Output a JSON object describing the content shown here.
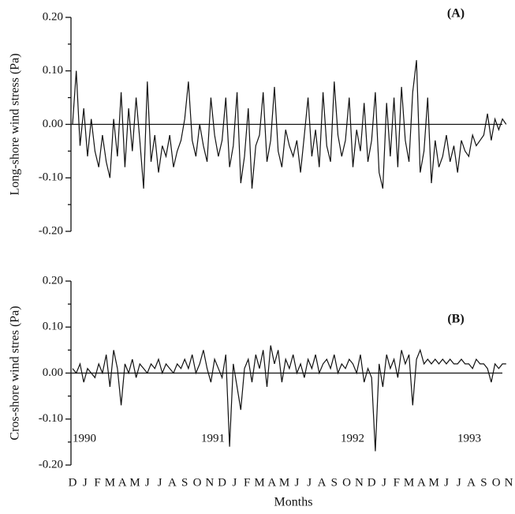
{
  "chart_data": [
    {
      "type": "line",
      "panel_label": "(A)",
      "ylabel": "Long-shore wind stress (Pa)",
      "color": "#111111",
      "ylim": [
        -0.2,
        0.2
      ],
      "yticks": [
        {
          "value": -0.2,
          "label": "-0.20"
        },
        {
          "value": -0.1,
          "label": "-0.10"
        },
        {
          "value": 0,
          "label": "0.00"
        },
        {
          "value": 0.1,
          "label": "0.10"
        },
        {
          "value": 0.2,
          "label": "0.20"
        }
      ],
      "xlim": [
        0,
        35
      ],
      "x": [
        0,
        0.3,
        0.6,
        0.9,
        1.2,
        1.5,
        1.8,
        2.1,
        2.4,
        2.7,
        3,
        3.3,
        3.6,
        3.9,
        4.2,
        4.5,
        4.8,
        5.1,
        5.4,
        5.7,
        6,
        6.3,
        6.6,
        6.9,
        7.2,
        7.5,
        7.8,
        8.1,
        8.4,
        8.7,
        9,
        9.3,
        9.6,
        9.9,
        10.2,
        10.5,
        10.8,
        11.1,
        11.4,
        11.7,
        12,
        12.3,
        12.6,
        12.9,
        13.2,
        13.5,
        13.8,
        14.1,
        14.4,
        14.7,
        15,
        15.3,
        15.6,
        15.9,
        16.2,
        16.5,
        16.8,
        17.1,
        17.4,
        17.7,
        18,
        18.3,
        18.6,
        18.9,
        19.2,
        19.5,
        19.8,
        20.1,
        20.4,
        20.7,
        21,
        21.3,
        21.6,
        21.9,
        22.2,
        22.5,
        22.8,
        23.1,
        23.4,
        23.7,
        24,
        24.3,
        24.6,
        24.9,
        25.2,
        25.5,
        25.8,
        26.1,
        26.4,
        26.7,
        27,
        27.3,
        27.6,
        27.9,
        28.2,
        28.5,
        28.8,
        29.1,
        29.4,
        29.7,
        30,
        30.3,
        30.6,
        30.9,
        31.2,
        31.5,
        31.8,
        32.1,
        32.4,
        32.7,
        33,
        33.3,
        33.6,
        33.9,
        34.2,
        34.5,
        34.8
      ],
      "values": [
        0.0,
        0.1,
        -0.04,
        0.03,
        -0.06,
        0.01,
        -0.05,
        -0.08,
        -0.02,
        -0.07,
        -0.1,
        0.01,
        -0.06,
        0.06,
        -0.08,
        0.03,
        -0.05,
        0.05,
        -0.03,
        -0.12,
        0.08,
        -0.07,
        -0.02,
        -0.09,
        -0.04,
        -0.06,
        -0.02,
        -0.08,
        -0.05,
        -0.03,
        0.01,
        0.08,
        -0.03,
        -0.06,
        0.0,
        -0.04,
        -0.07,
        0.05,
        -0.02,
        -0.06,
        -0.03,
        0.05,
        -0.08,
        -0.04,
        0.06,
        -0.11,
        -0.06,
        0.03,
        -0.12,
        -0.04,
        -0.02,
        0.06,
        -0.07,
        -0.03,
        0.07,
        -0.05,
        -0.08,
        -0.01,
        -0.04,
        -0.06,
        -0.03,
        -0.09,
        -0.02,
        0.05,
        -0.06,
        -0.01,
        -0.08,
        0.06,
        -0.04,
        -0.07,
        0.08,
        -0.02,
        -0.06,
        -0.03,
        0.05,
        -0.08,
        -0.01,
        -0.05,
        0.04,
        -0.07,
        -0.03,
        0.06,
        -0.09,
        -0.12,
        0.04,
        -0.06,
        0.05,
        -0.08,
        0.07,
        -0.03,
        -0.07,
        0.06,
        0.12,
        -0.09,
        -0.05,
        0.05,
        -0.11,
        -0.03,
        -0.08,
        -0.06,
        -0.02,
        -0.07,
        -0.04,
        -0.09,
        -0.03,
        -0.05,
        -0.06,
        -0.02,
        -0.04,
        -0.03,
        -0.02,
        0.02,
        -0.03,
        0.01,
        -0.01,
        0.01,
        0.0
      ]
    },
    {
      "type": "line",
      "panel_label": "(B)",
      "ylabel": "Cros-shore wind stres (Pa)",
      "xlabel": "Months",
      "color": "#111111",
      "ylim": [
        -0.2,
        0.2
      ],
      "yticks": [
        {
          "value": -0.2,
          "label": "-0.20"
        },
        {
          "value": -0.1,
          "label": "-0.10"
        },
        {
          "value": 0,
          "label": "0.00"
        },
        {
          "value": 0.1,
          "label": "0.10"
        },
        {
          "value": 0.2,
          "label": "0.20"
        }
      ],
      "xlim": [
        0,
        35
      ],
      "categories": [
        "D",
        "J",
        "F",
        "M",
        "A",
        "M",
        "J",
        "J",
        "A",
        "S",
        "O",
        "N",
        "D",
        "J",
        "F",
        "M",
        "A",
        "M",
        "J",
        "J",
        "A",
        "S",
        "O",
        "N",
        "D",
        "J",
        "F",
        "M",
        "A",
        "M",
        "J",
        "J",
        "A",
        "S",
        "O",
        "N"
      ],
      "annotations": [
        "1990",
        "1991",
        "1992",
        "1993"
      ],
      "x": [
        0,
        0.3,
        0.6,
        0.9,
        1.2,
        1.5,
        1.8,
        2.1,
        2.4,
        2.7,
        3,
        3.3,
        3.6,
        3.9,
        4.2,
        4.5,
        4.8,
        5.1,
        5.4,
        5.7,
        6,
        6.3,
        6.6,
        6.9,
        7.2,
        7.5,
        7.8,
        8.1,
        8.4,
        8.7,
        9,
        9.3,
        9.6,
        9.9,
        10.2,
        10.5,
        10.8,
        11.1,
        11.4,
        11.7,
        12,
        12.3,
        12.6,
        12.9,
        13.2,
        13.5,
        13.8,
        14.1,
        14.4,
        14.7,
        15,
        15.3,
        15.6,
        15.9,
        16.2,
        16.5,
        16.8,
        17.1,
        17.4,
        17.7,
        18,
        18.3,
        18.6,
        18.9,
        19.2,
        19.5,
        19.8,
        20.1,
        20.4,
        20.7,
        21,
        21.3,
        21.6,
        21.9,
        22.2,
        22.5,
        22.8,
        23.1,
        23.4,
        23.7,
        24,
        24.3,
        24.6,
        24.9,
        25.2,
        25.5,
        25.8,
        26.1,
        26.4,
        26.7,
        27,
        27.3,
        27.6,
        27.9,
        28.2,
        28.5,
        28.8,
        29.1,
        29.4,
        29.7,
        30,
        30.3,
        30.6,
        30.9,
        31.2,
        31.5,
        31.8,
        32.1,
        32.4,
        32.7,
        33,
        33.3,
        33.6,
        33.9,
        34.2,
        34.5,
        34.8
      ],
      "values": [
        0.01,
        0.0,
        0.02,
        -0.02,
        0.01,
        0.0,
        -0.01,
        0.02,
        0.0,
        0.04,
        -0.03,
        0.05,
        0.01,
        -0.07,
        0.02,
        0.0,
        0.03,
        -0.01,
        0.02,
        0.01,
        0.0,
        0.02,
        0.01,
        0.03,
        0.0,
        0.02,
        0.01,
        0.0,
        0.02,
        0.01,
        0.03,
        0.01,
        0.04,
        0.0,
        0.02,
        0.05,
        0.01,
        -0.02,
        0.03,
        0.01,
        -0.01,
        0.04,
        -0.16,
        0.02,
        -0.03,
        -0.08,
        0.01,
        0.03,
        -0.02,
        0.04,
        0.01,
        0.05,
        -0.03,
        0.06,
        0.02,
        0.05,
        -0.02,
        0.03,
        0.01,
        0.04,
        0.0,
        0.02,
        -0.01,
        0.03,
        0.01,
        0.04,
        0.0,
        0.02,
        0.03,
        0.01,
        0.04,
        0.0,
        0.02,
        0.01,
        0.03,
        0.02,
        0.0,
        0.04,
        -0.02,
        0.01,
        -0.01,
        -0.17,
        0.02,
        -0.03,
        0.04,
        0.01,
        0.03,
        -0.01,
        0.05,
        0.02,
        0.04,
        -0.07,
        0.03,
        0.05,
        0.02,
        0.03,
        0.02,
        0.03,
        0.02,
        0.03,
        0.02,
        0.03,
        0.02,
        0.02,
        0.03,
        0.02,
        0.02,
        0.01,
        0.03,
        0.02,
        0.02,
        0.01,
        -0.02,
        0.02,
        0.01,
        0.02,
        0.02
      ]
    }
  ]
}
